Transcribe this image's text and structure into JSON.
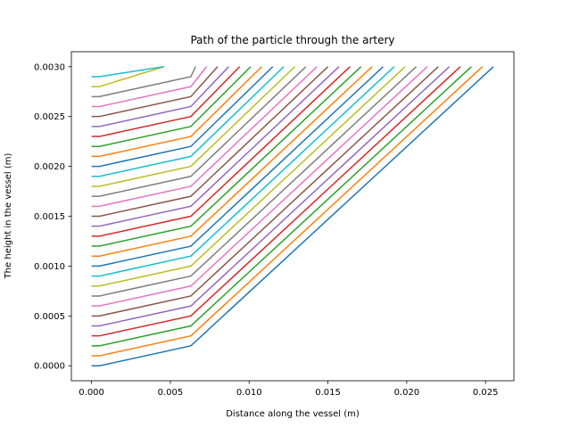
{
  "chart_data": {
    "type": "line",
    "title": "Path of the particle through the artery",
    "xlabel": "Distance along the vessel (m)",
    "ylabel": "The height in the vessel (m)",
    "xlim": [
      -0.00128,
      0.0268
    ],
    "ylim": [
      -0.00015,
      0.00315
    ],
    "xticks": [
      0.0,
      0.005,
      0.01,
      0.015,
      0.02,
      0.025
    ],
    "xtick_labels": [
      "0.000",
      "0.005",
      "0.010",
      "0.015",
      "0.020",
      "0.025"
    ],
    "yticks": [
      0.0,
      0.0005,
      0.001,
      0.0015,
      0.002,
      0.0025,
      0.003
    ],
    "ytick_labels": [
      "0.0000",
      "0.0005",
      "0.0010",
      "0.0015",
      "0.0020",
      "0.0025",
      "0.0030"
    ],
    "grid": false,
    "legend": false,
    "series_colors": [
      "#1f77b4",
      "#ff7f0e",
      "#2ca02c",
      "#d62728",
      "#9467bd",
      "#8c564b",
      "#e377c2",
      "#7f7f7f",
      "#bcbd22",
      "#17becf"
    ],
    "series": [
      {
        "x": [
          0.0,
          0.0005,
          0.0063,
          0.0255
        ],
        "y": [
          0.0,
          0.0,
          0.0002,
          0.003
        ]
      },
      {
        "x": [
          0.0,
          0.0005,
          0.0063,
          0.0248
        ],
        "y": [
          0.0001,
          0.0001,
          0.0003,
          0.003
        ]
      },
      {
        "x": [
          0.0,
          0.0005,
          0.0063,
          0.0241
        ],
        "y": [
          0.0002,
          0.0002,
          0.0004,
          0.003
        ]
      },
      {
        "x": [
          0.0,
          0.0005,
          0.0063,
          0.0234
        ],
        "y": [
          0.0003,
          0.0003,
          0.0005,
          0.003
        ]
      },
      {
        "x": [
          0.0,
          0.0005,
          0.0063,
          0.0227
        ],
        "y": [
          0.0004,
          0.0004,
          0.0006,
          0.003
        ]
      },
      {
        "x": [
          0.0,
          0.0005,
          0.0063,
          0.022
        ],
        "y": [
          0.0005,
          0.0005,
          0.0007,
          0.003
        ]
      },
      {
        "x": [
          0.0,
          0.0005,
          0.0063,
          0.0213
        ],
        "y": [
          0.0006,
          0.0006,
          0.0008,
          0.003
        ]
      },
      {
        "x": [
          0.0,
          0.0005,
          0.0063,
          0.0206
        ],
        "y": [
          0.0007,
          0.0007,
          0.0009,
          0.003
        ]
      },
      {
        "x": [
          0.0,
          0.0005,
          0.0063,
          0.0199
        ],
        "y": [
          0.0008,
          0.0008,
          0.001,
          0.003
        ]
      },
      {
        "x": [
          0.0,
          0.0005,
          0.0063,
          0.0192
        ],
        "y": [
          0.0009,
          0.0009,
          0.0011,
          0.003
        ]
      },
      {
        "x": [
          0.0,
          0.0005,
          0.0063,
          0.0185
        ],
        "y": [
          0.001,
          0.001,
          0.0012,
          0.003
        ]
      },
      {
        "x": [
          0.0,
          0.0005,
          0.0063,
          0.0178
        ],
        "y": [
          0.0011,
          0.0011,
          0.0013,
          0.003
        ]
      },
      {
        "x": [
          0.0,
          0.0005,
          0.0063,
          0.0171
        ],
        "y": [
          0.0012,
          0.0012,
          0.0014,
          0.003
        ]
      },
      {
        "x": [
          0.0,
          0.0005,
          0.0063,
          0.0164
        ],
        "y": [
          0.0013,
          0.0013,
          0.0015,
          0.003
        ]
      },
      {
        "x": [
          0.0,
          0.0005,
          0.0063,
          0.0157
        ],
        "y": [
          0.0014,
          0.0014,
          0.0016,
          0.003
        ]
      },
      {
        "x": [
          0.0,
          0.0005,
          0.0063,
          0.015
        ],
        "y": [
          0.0015,
          0.0015,
          0.0017,
          0.003
        ]
      },
      {
        "x": [
          0.0,
          0.0005,
          0.0063,
          0.0143
        ],
        "y": [
          0.0016,
          0.0016,
          0.0018,
          0.003
        ]
      },
      {
        "x": [
          0.0,
          0.0005,
          0.0063,
          0.0136
        ],
        "y": [
          0.0017,
          0.0017,
          0.0019,
          0.003
        ]
      },
      {
        "x": [
          0.0,
          0.0005,
          0.0063,
          0.0129
        ],
        "y": [
          0.0018,
          0.0018,
          0.002,
          0.003
        ]
      },
      {
        "x": [
          0.0,
          0.0005,
          0.0063,
          0.0122
        ],
        "y": [
          0.0019,
          0.0019,
          0.0021,
          0.003
        ]
      },
      {
        "x": [
          0.0,
          0.0005,
          0.0063,
          0.0115
        ],
        "y": [
          0.002,
          0.002,
          0.0022,
          0.003
        ]
      },
      {
        "x": [
          0.0,
          0.0005,
          0.0063,
          0.0108
        ],
        "y": [
          0.0021,
          0.0021,
          0.0023,
          0.003
        ]
      },
      {
        "x": [
          0.0,
          0.0005,
          0.0063,
          0.0101
        ],
        "y": [
          0.0022,
          0.0022,
          0.0024,
          0.003
        ]
      },
      {
        "x": [
          0.0,
          0.0005,
          0.0063,
          0.0094
        ],
        "y": [
          0.0023,
          0.0023,
          0.0025,
          0.003
        ]
      },
      {
        "x": [
          0.0,
          0.0005,
          0.0063,
          0.0087
        ],
        "y": [
          0.0024,
          0.0024,
          0.0026,
          0.003
        ]
      },
      {
        "x": [
          0.0,
          0.0005,
          0.0063,
          0.008
        ],
        "y": [
          0.0025,
          0.0025,
          0.0027,
          0.003
        ]
      },
      {
        "x": [
          0.0,
          0.0005,
          0.0063,
          0.0073
        ],
        "y": [
          0.0026,
          0.0026,
          0.0028,
          0.003
        ]
      },
      {
        "x": [
          0.0,
          0.0005,
          0.0063,
          0.0066
        ],
        "y": [
          0.0027,
          0.0027,
          0.0029,
          0.003
        ]
      },
      {
        "x": [
          0.0,
          0.0005,
          0.0046
        ],
        "y": [
          0.0028,
          0.0028,
          0.003
        ]
      },
      {
        "x": [
          0.0,
          0.0005,
          0.0046
        ],
        "y": [
          0.0029,
          0.0029,
          0.003
        ]
      }
    ]
  }
}
